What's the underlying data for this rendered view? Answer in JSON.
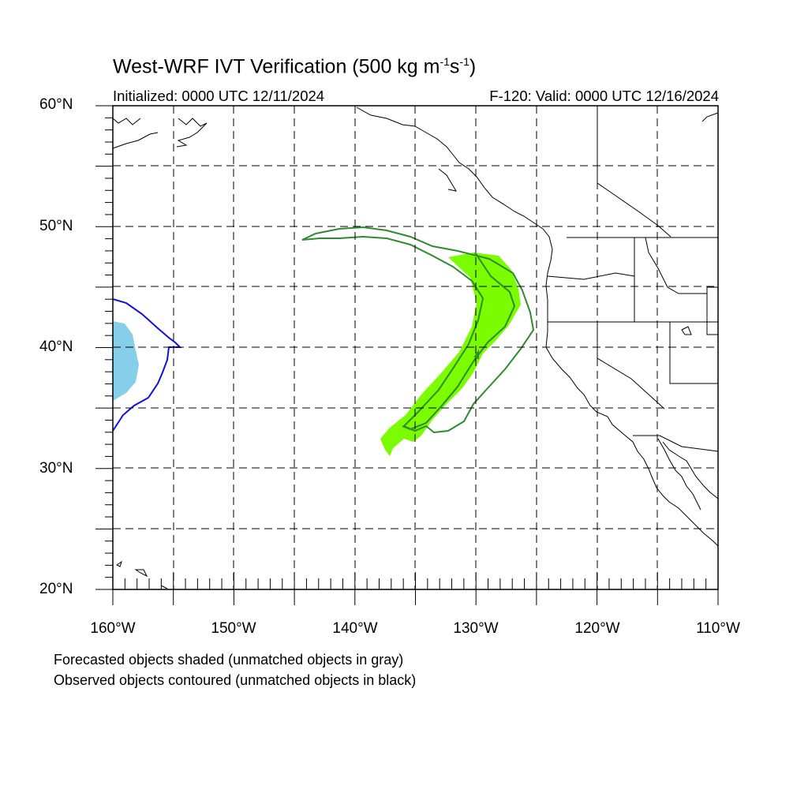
{
  "title": {
    "main": "West-WRF IVT Verification (500 kg m",
    "sup1": "-1",
    "mid": "s",
    "sup2": "-1",
    "end": ")"
  },
  "subtitle_left": "Initialized: 0000 UTC 12/11/2024",
  "subtitle_right": "F-120: Valid: 0000 UTC 12/16/2024",
  "lat_labels": [
    "60°N",
    "50°N",
    "40°N",
    "30°N",
    "20°N"
  ],
  "lon_labels": [
    "160°W",
    "150°W",
    "140°W",
    "130°W",
    "120°W",
    "110°W"
  ],
  "footnote_1": "Forecasted objects shaded (unmatched objects in gray)",
  "footnote_2": "Observed objects contoured (unmatched objects in black)",
  "map": {
    "lon_range": [
      -160,
      -110
    ],
    "lat_range": [
      20,
      60
    ],
    "colors": {
      "forecast_green": "#7cfc00",
      "observed_green": "#2e8b2e",
      "forecast_blue": "#87ceeb",
      "observed_blue": "#1010dd",
      "coastline": "#000000"
    }
  }
}
